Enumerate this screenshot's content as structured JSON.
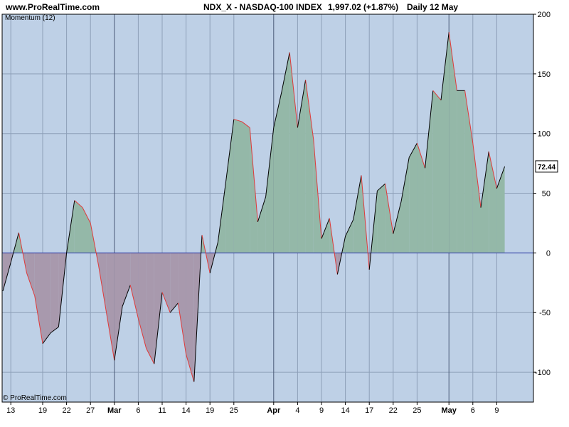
{
  "header": {
    "site": "www.ProRealTime.com",
    "instrument": "NDX_X - NASDAQ-100 INDEX",
    "price": "1,997.02 (+1.87%)",
    "period": "Daily  12 May"
  },
  "footer": {
    "copyright": "© ProRealTime.com"
  },
  "colors": {
    "background": "#bed0e6",
    "positive_fill": "#94b8a8",
    "negative_fill": "#a899ad",
    "up_segment": "#000000",
    "down_segment": "#e03a3a",
    "zero_line": "#2b35a8",
    "grid": "#8d9fb8",
    "month_line": "#4a5a78"
  },
  "chart_data": {
    "type": "area",
    "title": "Momentum (12)",
    "ylim": [
      -125,
      200
    ],
    "yticks": [
      200,
      150,
      100,
      50,
      0,
      -50,
      -100
    ],
    "last_value_label": "72.44",
    "zero_line": 0,
    "grid": true,
    "x_tick_labels": [
      {
        "i": 1,
        "label": "13"
      },
      {
        "i": 5,
        "label": "19"
      },
      {
        "i": 8,
        "label": "22"
      },
      {
        "i": 11,
        "label": "27"
      },
      {
        "i": 14,
        "label": "Mar"
      },
      {
        "i": 17,
        "label": "6"
      },
      {
        "i": 20,
        "label": "11"
      },
      {
        "i": 23,
        "label": "14"
      },
      {
        "i": 26,
        "label": "19"
      },
      {
        "i": 29,
        "label": "25"
      },
      {
        "i": 34,
        "label": "Apr"
      },
      {
        "i": 37,
        "label": "4"
      },
      {
        "i": 40,
        "label": "9"
      },
      {
        "i": 43,
        "label": "14"
      },
      {
        "i": 46,
        "label": "17"
      },
      {
        "i": 49,
        "label": "22"
      },
      {
        "i": 52,
        "label": "25"
      },
      {
        "i": 56,
        "label": "May"
      },
      {
        "i": 59,
        "label": "6"
      },
      {
        "i": 62,
        "label": "9"
      }
    ],
    "month_start_indices": [
      14,
      34,
      56
    ],
    "values": [
      -32,
      -8,
      17,
      -17,
      -36,
      -76,
      -67,
      -62,
      0,
      44,
      38,
      25,
      -10,
      -50,
      -90,
      -45,
      -27,
      -55,
      -80,
      -93,
      -33,
      -50,
      -42,
      -85,
      -108,
      15,
      -17,
      9,
      60,
      112,
      110,
      105,
      26,
      47,
      105,
      135,
      168,
      105,
      145,
      95,
      12,
      29,
      -18,
      14,
      28,
      65,
      -14,
      52,
      58,
      16,
      43,
      80,
      92,
      71,
      136,
      128,
      185,
      136,
      136,
      92,
      38,
      85,
      54,
      72.44
    ]
  }
}
